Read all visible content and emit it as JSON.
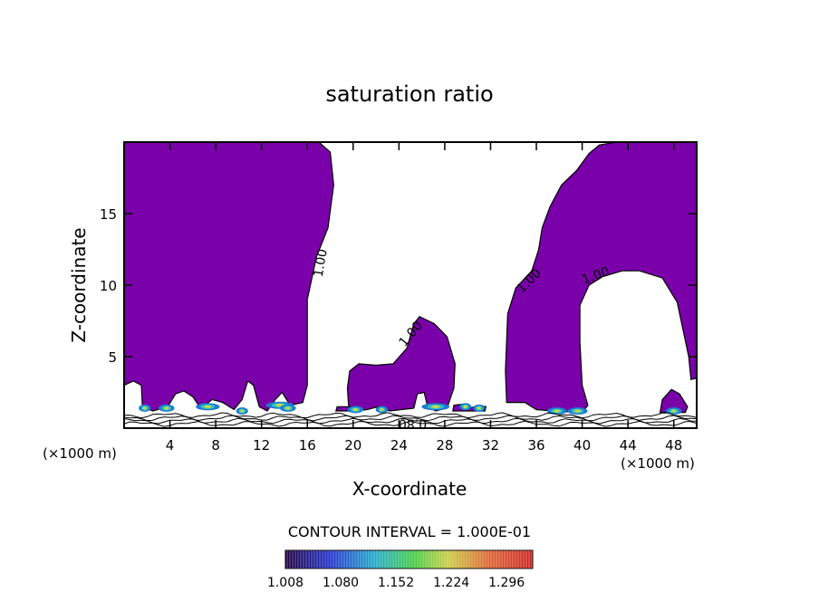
{
  "chart_data": {
    "type": "heatmap",
    "title": "saturation ratio",
    "xlabel": "X-coordinate",
    "ylabel": "Z-coordinate",
    "x_unit_left": "(×1000 m)",
    "x_unit_right": "(×1000 m)",
    "xlim": [
      0,
      50
    ],
    "ylim": [
      0,
      20
    ],
    "x_ticks": [
      4,
      8,
      12,
      16,
      20,
      24,
      28,
      32,
      36,
      40,
      44,
      48
    ],
    "y_ticks": [
      5,
      10,
      15
    ],
    "contour_interval_text": "CONTOUR INTERVAL = 1.000E-01",
    "colorbar_min": 1.008,
    "colorbar_max": 1.33,
    "colorbar_ticks": [
      "1.008",
      "1.080",
      "1.152",
      "1.224",
      "1.296"
    ],
    "fill_color": "#7a00aa",
    "contour_labels": [
      {
        "text": "1.00",
        "x": 17.5,
        "y": 11.5,
        "angle": -80
      },
      {
        "text": "1.00",
        "x": 25.3,
        "y": 6.4,
        "angle": -50
      },
      {
        "text": "1.00",
        "x": 35.6,
        "y": 10.1,
        "angle": -45
      },
      {
        "text": "1.00",
        "x": 41.3,
        "y": 10.4,
        "angle": -20
      },
      {
        "text": "0.80",
        "x": 25.2,
        "y": 0.6,
        "angle": 180
      }
    ],
    "regions": [
      {
        "name": "left-supersaturated-region",
        "points": [
          [
            0,
            20
          ],
          [
            17,
            20
          ],
          [
            18,
            19.3
          ],
          [
            18.3,
            17
          ],
          [
            17.8,
            14
          ],
          [
            16.8,
            12
          ],
          [
            16,
            9
          ],
          [
            16,
            3
          ],
          [
            15.6,
            1.8
          ],
          [
            14.5,
            1.6
          ],
          [
            13.8,
            2.5
          ],
          [
            13.2,
            2
          ],
          [
            12.5,
            1.2
          ],
          [
            11.8,
            1.5
          ],
          [
            11.3,
            3
          ],
          [
            10.8,
            3.3
          ],
          [
            10.3,
            2
          ],
          [
            9.6,
            1.3
          ],
          [
            8.6,
            1.8
          ],
          [
            7.7,
            2
          ],
          [
            7.2,
            1.7
          ],
          [
            6.5,
            1.6
          ],
          [
            6,
            2.2
          ],
          [
            5.2,
            2.6
          ],
          [
            4.5,
            2.4
          ],
          [
            3.8,
            1.5
          ],
          [
            2.5,
            1.2
          ],
          [
            1.6,
            1.5
          ],
          [
            1.5,
            3
          ],
          [
            0.8,
            3.3
          ],
          [
            0,
            3
          ]
        ]
      },
      {
        "name": "middle-mound-region",
        "points": [
          [
            20.2,
            1.2
          ],
          [
            19.6,
            1.6
          ],
          [
            19.5,
            2.8
          ],
          [
            19.7,
            4
          ],
          [
            20.5,
            4.5
          ],
          [
            22,
            4.4
          ],
          [
            23.5,
            4.5
          ],
          [
            24.7,
            5.6
          ],
          [
            25.3,
            7.3
          ],
          [
            25.8,
            7.8
          ],
          [
            27.1,
            7.3
          ],
          [
            28.2,
            6.4
          ],
          [
            28.9,
            4.5
          ],
          [
            28.8,
            2.8
          ],
          [
            28.2,
            1.4
          ],
          [
            27.2,
            1.2
          ],
          [
            26.5,
            1.5
          ],
          [
            26.2,
            2.5
          ],
          [
            25.6,
            2.4
          ],
          [
            25.3,
            1.4
          ],
          [
            23.2,
            1.2
          ],
          [
            22.2,
            1.5
          ],
          [
            21.2,
            1.3
          ]
        ]
      },
      {
        "name": "right-arch-region",
        "points": [
          [
            33.4,
            1.8
          ],
          [
            33.3,
            4
          ],
          [
            33.5,
            8
          ],
          [
            34.2,
            9.8
          ],
          [
            35.6,
            11
          ],
          [
            36.2,
            12.5
          ],
          [
            36.5,
            14
          ],
          [
            37.2,
            15.5
          ],
          [
            38.2,
            17
          ],
          [
            39.5,
            18
          ],
          [
            40.6,
            19.2
          ],
          [
            41.5,
            19.8
          ],
          [
            43,
            20
          ],
          [
            50,
            20
          ],
          [
            50,
            3.5
          ],
          [
            49.5,
            3.4
          ],
          [
            49.3,
            5
          ],
          [
            48.3,
            8.8
          ],
          [
            47,
            10.5
          ],
          [
            45,
            11
          ],
          [
            43.5,
            11
          ],
          [
            41.8,
            10.6
          ],
          [
            40.6,
            10
          ],
          [
            39.8,
            8.6
          ],
          [
            39.8,
            6
          ],
          [
            40,
            3
          ],
          [
            40.5,
            1.6
          ],
          [
            40,
            1.1
          ],
          [
            37.5,
            1.2
          ],
          [
            36,
            1.3
          ],
          [
            35,
            1.8
          ]
        ]
      },
      {
        "name": "small-cell-region",
        "points": [
          [
            28.7,
            1.2
          ],
          [
            28.8,
            1.6
          ],
          [
            29.9,
            1.7
          ],
          [
            30.2,
            1.4
          ],
          [
            31,
            1.6
          ],
          [
            31.6,
            1.5
          ],
          [
            31.5,
            1.2
          ]
        ]
      },
      {
        "name": "bottom-right-region",
        "points": [
          [
            46.8,
            1.1
          ],
          [
            47,
            2
          ],
          [
            47.8,
            2.7
          ],
          [
            48.5,
            2.4
          ],
          [
            49.2,
            1.5
          ],
          [
            49,
            1.1
          ]
        ]
      },
      {
        "name": "near-ground-region",
        "points": [
          [
            18.5,
            1.2
          ],
          [
            18.6,
            1.5
          ],
          [
            19.6,
            1.5
          ],
          [
            20.2,
            1.2
          ]
        ]
      }
    ]
  }
}
